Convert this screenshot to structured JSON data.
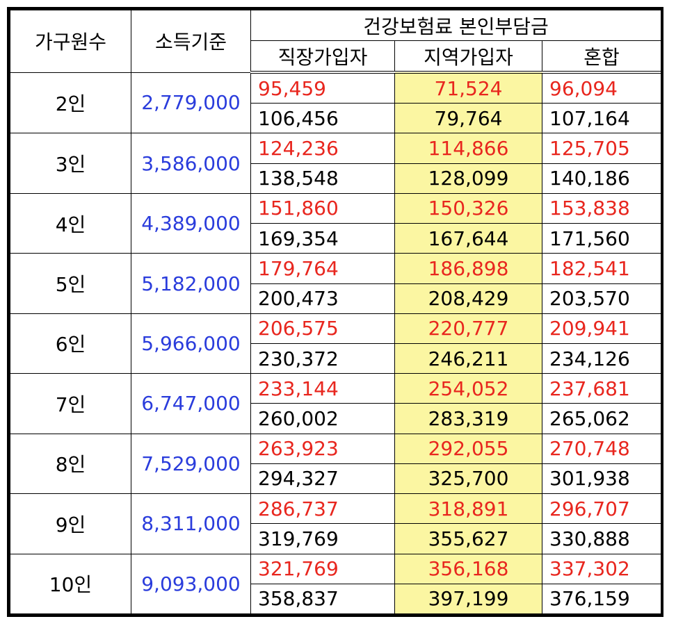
{
  "headers": {
    "household": "가구원수",
    "income": "소득기준",
    "premium_group": "건강보험료 본인부담금",
    "workplace": "직장가입자",
    "regional": "지역가입자",
    "mixed": "혼합"
  },
  "rows": [
    {
      "household": "2인",
      "income": "2,779,000",
      "workplace": [
        "95,459",
        "106,456"
      ],
      "regional": [
        "71,524",
        "79,764"
      ],
      "mixed": [
        "96,094",
        "107,164"
      ]
    },
    {
      "household": "3인",
      "income": "3,586,000",
      "workplace": [
        "124,236",
        "138,548"
      ],
      "regional": [
        "114,866",
        "128,099"
      ],
      "mixed": [
        "125,705",
        "140,186"
      ]
    },
    {
      "household": "4인",
      "income": "4,389,000",
      "workplace": [
        "151,860",
        "169,354"
      ],
      "regional": [
        "150,326",
        "167,644"
      ],
      "mixed": [
        "153,838",
        "171,560"
      ]
    },
    {
      "household": "5인",
      "income": "5,182,000",
      "workplace": [
        "179,764",
        "200,473"
      ],
      "regional": [
        "186,898",
        "208,429"
      ],
      "mixed": [
        "182,541",
        "203,570"
      ]
    },
    {
      "household": "6인",
      "income": "5,966,000",
      "workplace": [
        "206,575",
        "230,372"
      ],
      "regional": [
        "220,777",
        "246,211"
      ],
      "mixed": [
        "209,941",
        "234,126"
      ]
    },
    {
      "household": "7인",
      "income": "6,747,000",
      "workplace": [
        "233,144",
        "260,002"
      ],
      "regional": [
        "254,052",
        "283,319"
      ],
      "mixed": [
        "237,681",
        "265,062"
      ]
    },
    {
      "household": "8인",
      "income": "7,529,000",
      "workplace": [
        "263,923",
        "294,327"
      ],
      "regional": [
        "292,055",
        "325,700"
      ],
      "mixed": [
        "270,748",
        "301,938"
      ]
    },
    {
      "household": "9인",
      "income": "8,311,000",
      "workplace": [
        "286,737",
        "319,769"
      ],
      "regional": [
        "318,891",
        "355,627"
      ],
      "mixed": [
        "296,707",
        "330,888"
      ]
    },
    {
      "household": "10인",
      "income": "9,093,000",
      "workplace": [
        "321,769",
        "358,837"
      ],
      "regional": [
        "356,168",
        "397,199"
      ],
      "mixed": [
        "337,302",
        "376,159"
      ]
    }
  ],
  "colors": {
    "income_text": "#2a3cdc",
    "upper_value_text": "#e8261e",
    "regional_highlight": "#fbf6a2"
  }
}
